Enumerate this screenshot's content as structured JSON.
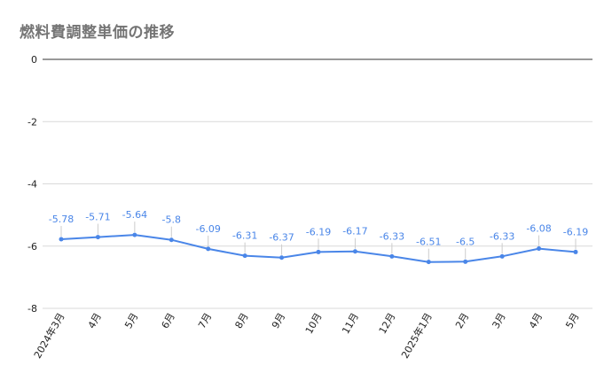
{
  "chart_data": {
    "type": "line",
    "title": "燃料費調整単価の推移",
    "xlabel": "",
    "ylabel": "",
    "categories": [
      "2024年3月",
      "4月",
      "5月",
      "6月",
      "7月",
      "8月",
      "9月",
      "10月",
      "11月",
      "12月",
      "2025年1月",
      "2月",
      "3月",
      "4月",
      "5月"
    ],
    "series": [
      {
        "values": [
          -5.78,
          -5.71,
          -5.64,
          -5.8,
          -6.09,
          -6.31,
          -6.37,
          -6.19,
          -6.17,
          -6.33,
          -6.51,
          -6.5,
          -6.33,
          -6.08,
          -6.19
        ],
        "color": "#4a86e8"
      }
    ],
    "ylim": [
      -8,
      0
    ],
    "yticks": [
      0,
      -2,
      -4,
      -6,
      -8
    ],
    "grid": true,
    "legend": "none",
    "data_labels": true
  }
}
